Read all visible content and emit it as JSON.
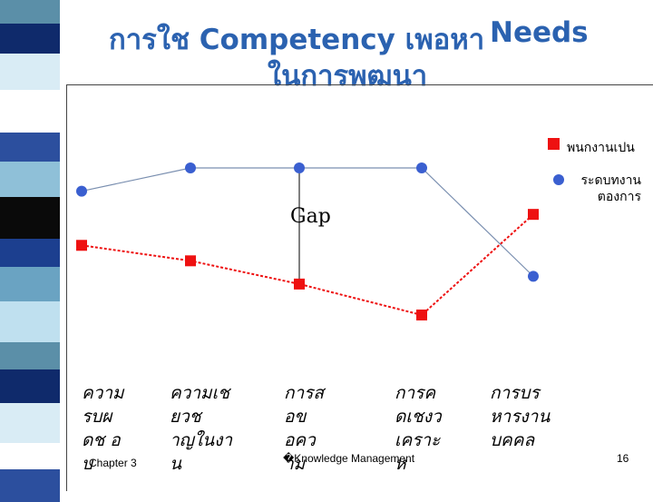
{
  "slide": {
    "title_line1": "การใช Competency เพอหา",
    "title_needs": "Needs",
    "title_line2": "ในการพฒนา",
    "footer_left": "Chapter 3",
    "footer_center": "�Knowledge Management",
    "footer_right": "16"
  },
  "colors": {
    "series_red": "#ee1111",
    "series_blue": "#3a5fd0",
    "title": "#2b62b0"
  },
  "chart_data": {
    "type": "line",
    "categories": [
      "ความ\nรบผ\nดช อ\nบ",
      "ความเช\nยวช\nาญในงา\nน",
      "การส\nอข\nอคว\nาม",
      "การค\nดเชงว\nเคราะ\nห",
      "การบร\nหารงาน\nบคคล"
    ],
    "series": [
      {
        "name": "พนกงานเปน",
        "values": [
          3.0,
          2.8,
          2.5,
          2.1,
          3.4
        ]
      },
      {
        "name": "ระดบทงาน\nตองการ",
        "values": [
          3.7,
          4.0,
          4.0,
          4.0,
          2.6
        ]
      }
    ],
    "annotation": "Gap"
  },
  "legend": [
    {
      "label": "พนกงานเปน",
      "color": "#ee1111",
      "icon": "square-marker-icon"
    },
    {
      "label": "ระดบทงาน\nตองการ",
      "color": "#3a5fd0",
      "icon": "circle-marker-icon"
    }
  ]
}
